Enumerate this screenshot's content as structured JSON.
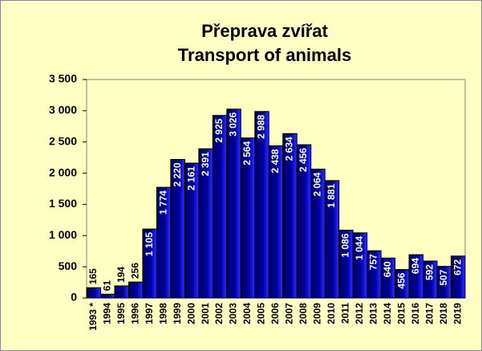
{
  "chart_data": {
    "type": "bar",
    "title": "Přeprava zvířat",
    "subtitle": "Transport of animals",
    "categories": [
      "1993 *",
      "1994",
      "1995",
      "1996",
      "1997",
      "1998",
      "1999",
      "2000",
      "2001",
      "2002",
      "2003",
      "2004",
      "2005",
      "2006",
      "2007",
      "2008",
      "2009",
      "2010",
      "2011",
      "2012",
      "2013",
      "2014",
      "2015",
      "2016",
      "2017",
      "2018",
      "2019"
    ],
    "values": [
      165,
      61,
      194,
      256,
      1105,
      1774,
      2220,
      2161,
      2391,
      2925,
      3026,
      2564,
      2988,
      2438,
      2634,
      2456,
      2064,
      1881,
      1086,
      1044,
      757,
      640,
      456,
      694,
      592,
      507,
      672
    ],
    "value_labels": [
      "165",
      "61",
      "194",
      "256",
      "1 105",
      "1 774",
      "2 220",
      "2 161",
      "2 391",
      "2 925",
      "3 026",
      "2 564",
      "2 988",
      "2 438",
      "2 634",
      "2 456",
      "2 064",
      "1 881",
      "1 086",
      "1 044",
      "757",
      "640",
      "456",
      "694",
      "592",
      "507",
      "672"
    ],
    "color": "#000090",
    "ylim": [
      0,
      3500
    ],
    "yticks": [
      0,
      {
        "value": 500,
        "label": "500"
      },
      {
        "value": 1000,
        "label": "1 000"
      },
      {
        "value": 1500,
        "label": "1 500"
      },
      {
        "value": 2000,
        "label": "2 000"
      },
      {
        "value": 2500,
        "label": "2 500"
      },
      {
        "value": 3000,
        "label": "3 000"
      },
      {
        "value": 3500,
        "label": "3 500"
      }
    ],
    "grid": false
  }
}
